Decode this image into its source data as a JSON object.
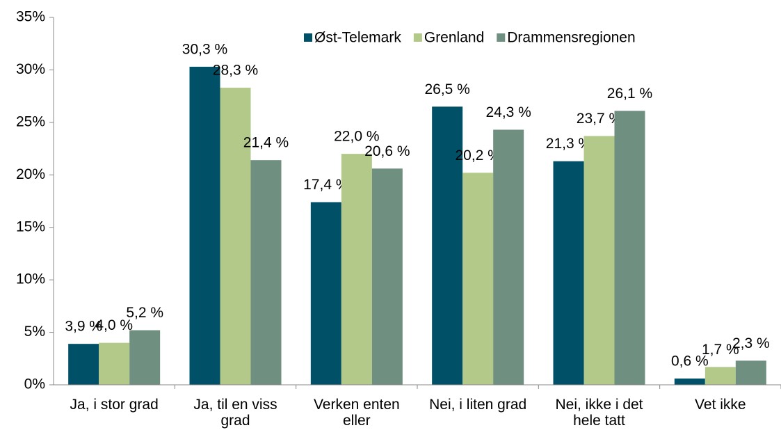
{
  "chart_data": {
    "type": "bar",
    "categories": [
      "Ja, i stor grad",
      "Ja, til en viss grad",
      "Verken enten eller",
      "Nei, i liten grad",
      "Nei, ikke i det hele tatt",
      "Vet ikke"
    ],
    "series": [
      {
        "name": "Øst-Telemark",
        "color": "#005068",
        "values": [
          3.9,
          30.3,
          17.4,
          26.5,
          21.3,
          0.6
        ],
        "value_labels": [
          "3,9 %",
          "30,3 %",
          "17,4 %",
          "26,5 %",
          "21,3 %",
          "0,6 %"
        ]
      },
      {
        "name": "Grenland",
        "color": "#b3c98a",
        "values": [
          4.0,
          28.3,
          22.0,
          20.2,
          23.7,
          1.7
        ],
        "value_labels": [
          "4,0 %",
          "28,3 %",
          "22,0 %",
          "20,2 %",
          "23,7 %",
          "1,7 %"
        ]
      },
      {
        "name": "Drammensregionen",
        "color": "#6f8f80",
        "values": [
          5.2,
          21.4,
          20.6,
          24.3,
          26.1,
          2.3
        ],
        "value_labels": [
          "5,2 %",
          "21,4 %",
          "20,6 %",
          "24,3 %",
          "26,1 %",
          "2,3 %"
        ]
      }
    ],
    "ylim": [
      0,
      35
    ],
    "yticks": [
      {
        "value": 0,
        "label": "0%"
      },
      {
        "value": 5,
        "label": "5%"
      },
      {
        "value": 10,
        "label": "10%"
      },
      {
        "value": 15,
        "label": "15%"
      },
      {
        "value": 20,
        "label": "20%"
      },
      {
        "value": 25,
        "label": "25%"
      },
      {
        "value": 30,
        "label": "30%"
      },
      {
        "value": 35,
        "label": "35%"
      }
    ],
    "legend": "top"
  }
}
